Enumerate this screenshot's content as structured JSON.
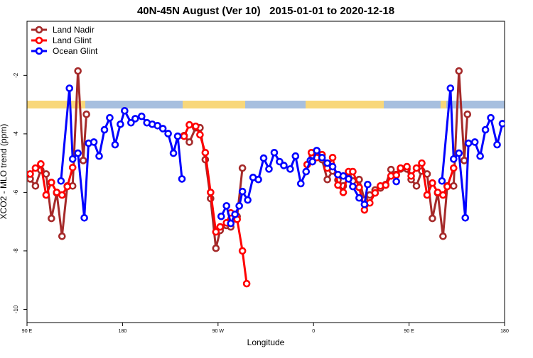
{
  "chart_data": {
    "type": "line",
    "title": "40N-45N August (Ver 10)   2015-01-01 to 2020-12-18",
    "x_label": "Longitude",
    "y_label": "XCO2 - MLO trend (ppm)",
    "xlim": [
      90,
      540
    ],
    "ylim": [
      -10.45,
      -0.15
    ],
    "xticks": [
      {
        "value": 90,
        "label": "90 E"
      },
      {
        "value": 180,
        "label": "180"
      },
      {
        "value": 270,
        "label": "90 W"
      },
      {
        "value": 360,
        "label": "0"
      },
      {
        "value": 450,
        "label": "90 E"
      },
      {
        "value": 540,
        "label": "180"
      }
    ],
    "yticks": [
      -2,
      -4,
      -6,
      -8,
      -10
    ],
    "legend": "top-left",
    "series": [
      {
        "name": "Land Nadir",
        "color": "#a52a2a",
        "x": [
          93,
          98,
          103,
          108,
          113,
          118,
          123,
          128,
          133,
          138,
          143,
          146,
          150,
          238,
          243,
          249,
          253,
          258,
          263,
          268,
          272,
          278,
          282,
          288,
          293,
          300,
          354,
          359,
          363,
          368,
          373,
          378,
          383,
          388,
          393,
          397,
          403,
          408,
          413,
          418,
          423,
          428,
          433,
          438,
          442,
          448,
          452,
          457,
          462,
          467,
          472,
          477,
          482,
          486,
          492,
          497,
          502,
          505
        ],
        "values": [
          -5.54,
          -5.78,
          -5.24,
          -5.37,
          -6.89,
          -6.02,
          -7.5,
          -5.78,
          -5.78,
          -1.85,
          -4.91,
          -3.33,
          null,
          -4.06,
          -4.28,
          -3.79,
          -3.79,
          -4.88,
          -6.21,
          -7.91,
          -7.3,
          -7.13,
          -7.18,
          -6.82,
          -5.17,
          null,
          -5.05,
          -4.76,
          -4.71,
          -4.88,
          -5.56,
          -5.27,
          -5.58,
          -5.78,
          -5.49,
          -5.61,
          -5.56,
          -6.26,
          -6.09,
          -5.92,
          -5.85,
          -5.73,
          -5.22,
          -5.39,
          -5.2,
          -5.2,
          -5.56,
          -5.78,
          -5.27,
          -5.37,
          -6.89,
          -6.02,
          -7.5,
          -5.78,
          -5.78,
          -1.85,
          -4.91,
          -3.33
        ]
      },
      {
        "name": "Land Glint",
        "color": "#ff0000",
        "x": [
          93,
          98,
          103,
          108,
          113,
          118,
          123,
          128,
          133,
          200,
          238,
          243,
          249,
          253,
          258,
          263,
          268,
          272,
          278,
          282,
          288,
          293,
          297,
          320,
          354,
          358,
          363,
          368,
          373,
          378,
          383,
          388,
          393,
          397,
          403,
          408,
          413,
          418,
          423,
          428,
          433,
          438,
          442,
          448,
          452,
          457,
          462,
          467,
          472,
          477,
          482,
          486,
          492
        ],
        "values": [
          -5.37,
          -5.17,
          -5.03,
          -6.09,
          -5.66,
          -6.0,
          -6.09,
          -5.8,
          -5.15,
          null,
          -4.08,
          -3.69,
          -3.74,
          -4.03,
          -4.64,
          -6.0,
          -7.35,
          -7.18,
          -7.04,
          -6.7,
          -6.92,
          -8.0,
          -9.12,
          null,
          -5.05,
          -4.64,
          -4.81,
          -4.71,
          -5.17,
          -4.81,
          -5.75,
          -6.0,
          -5.29,
          -5.29,
          -5.83,
          -6.6,
          -6.36,
          -6.02,
          -5.78,
          -5.75,
          -5.44,
          -5.41,
          -5.17,
          -5.12,
          -5.44,
          -5.17,
          -5.0,
          -6.09,
          -5.68,
          -6.0,
          -6.09,
          -5.8,
          -5.17
        ]
      },
      {
        "name": "Ocean Glint",
        "color": "#0000ff",
        "x": [
          122,
          130,
          133,
          138,
          144,
          148,
          153,
          158,
          163,
          168,
          173,
          178,
          182,
          188,
          192,
          198,
          203,
          208,
          213,
          218,
          223,
          228,
          232,
          236,
          270,
          273,
          278,
          282,
          286,
          290,
          293,
          298,
          303,
          308,
          313,
          318,
          323,
          328,
          332,
          338,
          343,
          348,
          353,
          357,
          359,
          363,
          368,
          373,
          378,
          383,
          388,
          393,
          397,
          403,
          408,
          411,
          420,
          438,
          450,
          481,
          489,
          492,
          497,
          503,
          506,
          512,
          517,
          522,
          527,
          533,
          538
        ],
        "values": [
          -5.61,
          -2.44,
          -4.86,
          -4.66,
          -6.87,
          -4.32,
          -4.28,
          -4.76,
          -3.86,
          -3.45,
          -4.37,
          -3.67,
          -3.21,
          -3.62,
          -3.48,
          -3.4,
          -3.62,
          -3.67,
          -3.72,
          -3.82,
          -3.99,
          -4.66,
          -4.08,
          -5.54,
          null,
          -6.82,
          -6.46,
          -7.06,
          -6.75,
          -6.46,
          -5.97,
          -6.26,
          -5.49,
          -5.56,
          -4.83,
          -5.2,
          -4.64,
          -4.95,
          -5.08,
          -5.2,
          -4.76,
          -5.7,
          -5.29,
          -4.91,
          -4.95,
          -4.57,
          -4.81,
          -5.0,
          -5.12,
          -5.39,
          -5.44,
          -5.54,
          -5.8,
          -6.19,
          -6.41,
          -5.73,
          null,
          -5.63,
          null,
          -5.61,
          -2.44,
          -4.86,
          -4.66,
          -6.87,
          -4.32,
          -4.28,
          -4.76,
          -3.86,
          -3.45,
          -4.37,
          -3.65
        ]
      }
    ]
  }
}
